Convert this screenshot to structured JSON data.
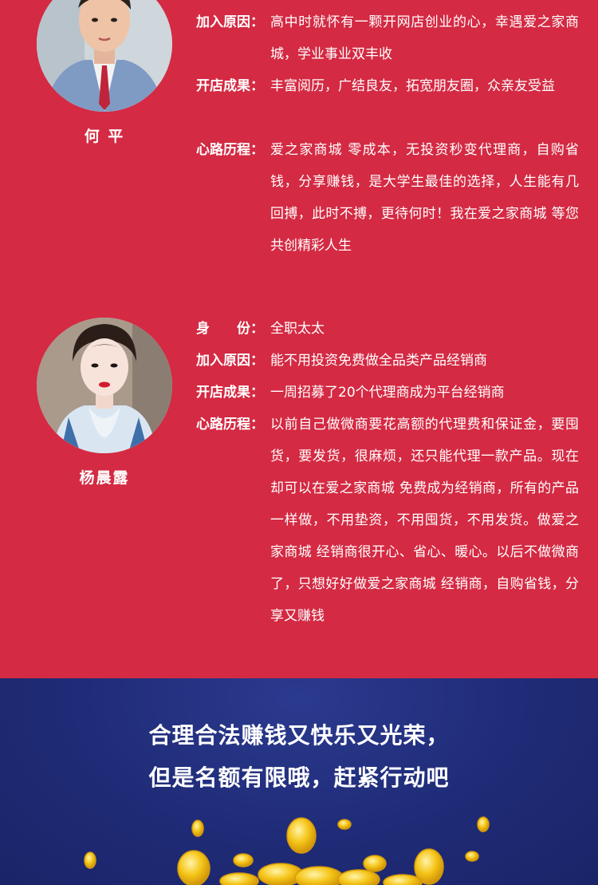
{
  "colors": {
    "red_background": "#d42a43",
    "blue_background": "#1f2b76",
    "text": "#ffffff",
    "coin_gold": "#f5c518"
  },
  "profiles": [
    {
      "name": "何 平",
      "rows": [
        {
          "label": "加入原因：",
          "value": "高中时就怀有一颗开网店创业的心，幸遇爱之家商城，学业事业双丰收"
        },
        {
          "label": "开店成果：",
          "value": "丰富阅历，广结良友，拓宽朋友圈，众亲友受益"
        },
        {
          "label": "心路历程：",
          "value": "爱之家商城 零成本，无投资秒变代理商，自购省钱，分享赚钱，是大学生最佳的选择，人生能有几回搏，此时不搏，更待何时！我在爱之家商城 等您共创精彩人生"
        }
      ]
    },
    {
      "name": "杨晨露",
      "rows": [
        {
          "label": "身　　份：",
          "value": "全职太太"
        },
        {
          "label": "加入原因：",
          "value": "能不用投资免费做全品类产品经销商"
        },
        {
          "label": "开店成果：",
          "value": "一周招募了20个代理商成为平台经销商"
        },
        {
          "label": "心路历程：",
          "value": "以前自己做微商要花高额的代理费和保证金，要囤货，要发货，很麻烦，还只能代理一款产品。现在却可以在爱之家商城 免费成为经销商，所有的产品一样做，不用垫资，不用囤货，不用发货。做爱之家商城 经销商很开心、省心、暖心。以后不做微商了，只想好好做爱之家商城 经销商，自购省钱，分享又赚钱"
        }
      ]
    }
  ],
  "slogan": {
    "line1": "合理合法赚钱又快乐又光荣，",
    "line2": "但是名额有限哦，赶紧行动吧"
  }
}
